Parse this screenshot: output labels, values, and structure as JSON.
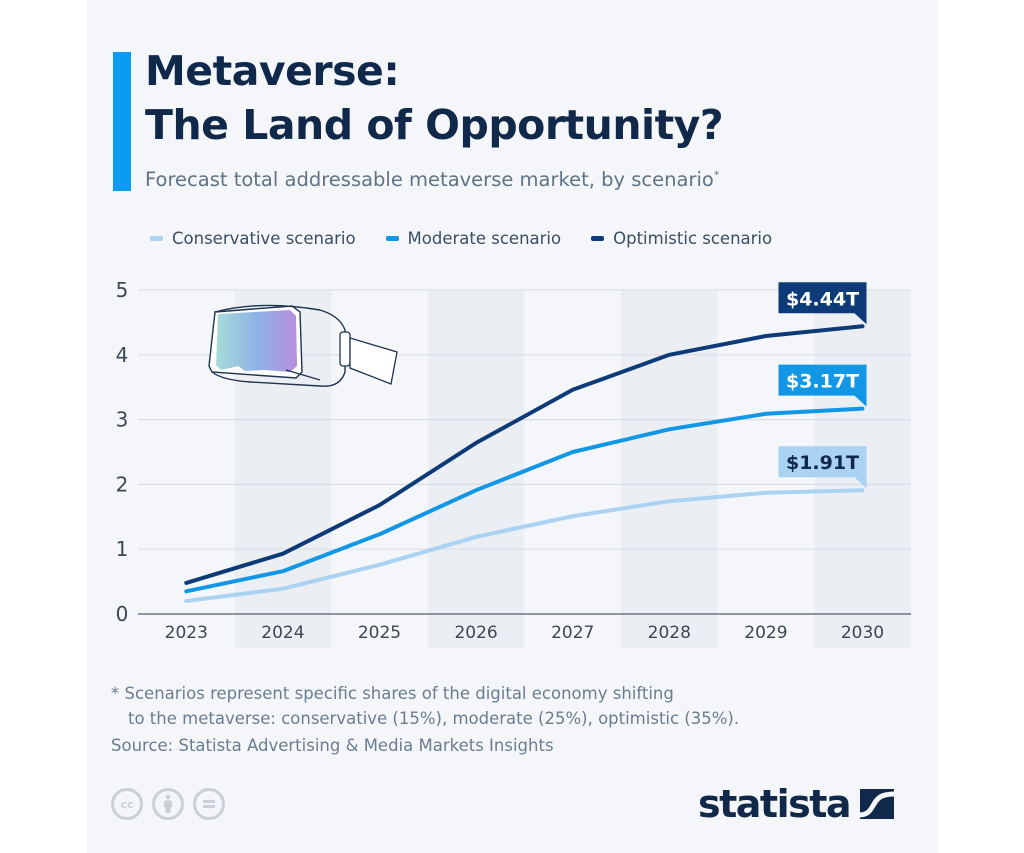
{
  "header": {
    "title_line1": "Metaverse:",
    "title_line2": "The Land of Opportunity?",
    "subtitle": "Forecast total addressable metaverse market, by scenario",
    "subtitle_marker": "*"
  },
  "colors": {
    "accent": "#0b9bf2",
    "conservative": "#a9d2f3",
    "moderate": "#1297e6",
    "optimistic": "#0d3b78",
    "title": "#10294a"
  },
  "chart_data": {
    "type": "line",
    "title": "Forecast total addressable metaverse market, by scenario",
    "xlabel": "",
    "ylabel": "",
    "unit": "trillion USD",
    "x": [
      "2023",
      "2024",
      "2025",
      "2026",
      "2027",
      "2028",
      "2029",
      "2030"
    ],
    "ylim": [
      0,
      5
    ],
    "yticks": [
      "0",
      "1",
      "2",
      "3",
      "4",
      "5"
    ],
    "grid": true,
    "legend_position": "top",
    "series": [
      {
        "name": "Conservative scenario",
        "key": "conservative",
        "values": [
          0.2,
          0.39,
          0.76,
          1.19,
          1.51,
          1.74,
          1.87,
          1.91
        ],
        "end_label": "$1.91T"
      },
      {
        "name": "Moderate scenario",
        "key": "moderate",
        "values": [
          0.35,
          0.66,
          1.23,
          1.91,
          2.5,
          2.85,
          3.09,
          3.17
        ],
        "end_label": "$3.17T"
      },
      {
        "name": "Optimistic scenario",
        "key": "optimistic",
        "values": [
          0.48,
          0.93,
          1.68,
          2.64,
          3.46,
          4.0,
          4.29,
          4.44
        ],
        "end_label": "$4.44T"
      }
    ]
  },
  "illustration": {
    "icon": "vr-headset-icon"
  },
  "footer": {
    "footnote_line1": "* Scenarios represent specific shares of the digital economy shifting",
    "footnote_line2": "to the metaverse: conservative (15%), moderate (25%), optimistic (35%).",
    "source": "Source: Statista Advertising & Media Markets Insights",
    "license_icons": [
      "cc-icon",
      "attribution-icon",
      "no-derivatives-icon"
    ],
    "cc_text": "cc",
    "brand": "statista"
  }
}
